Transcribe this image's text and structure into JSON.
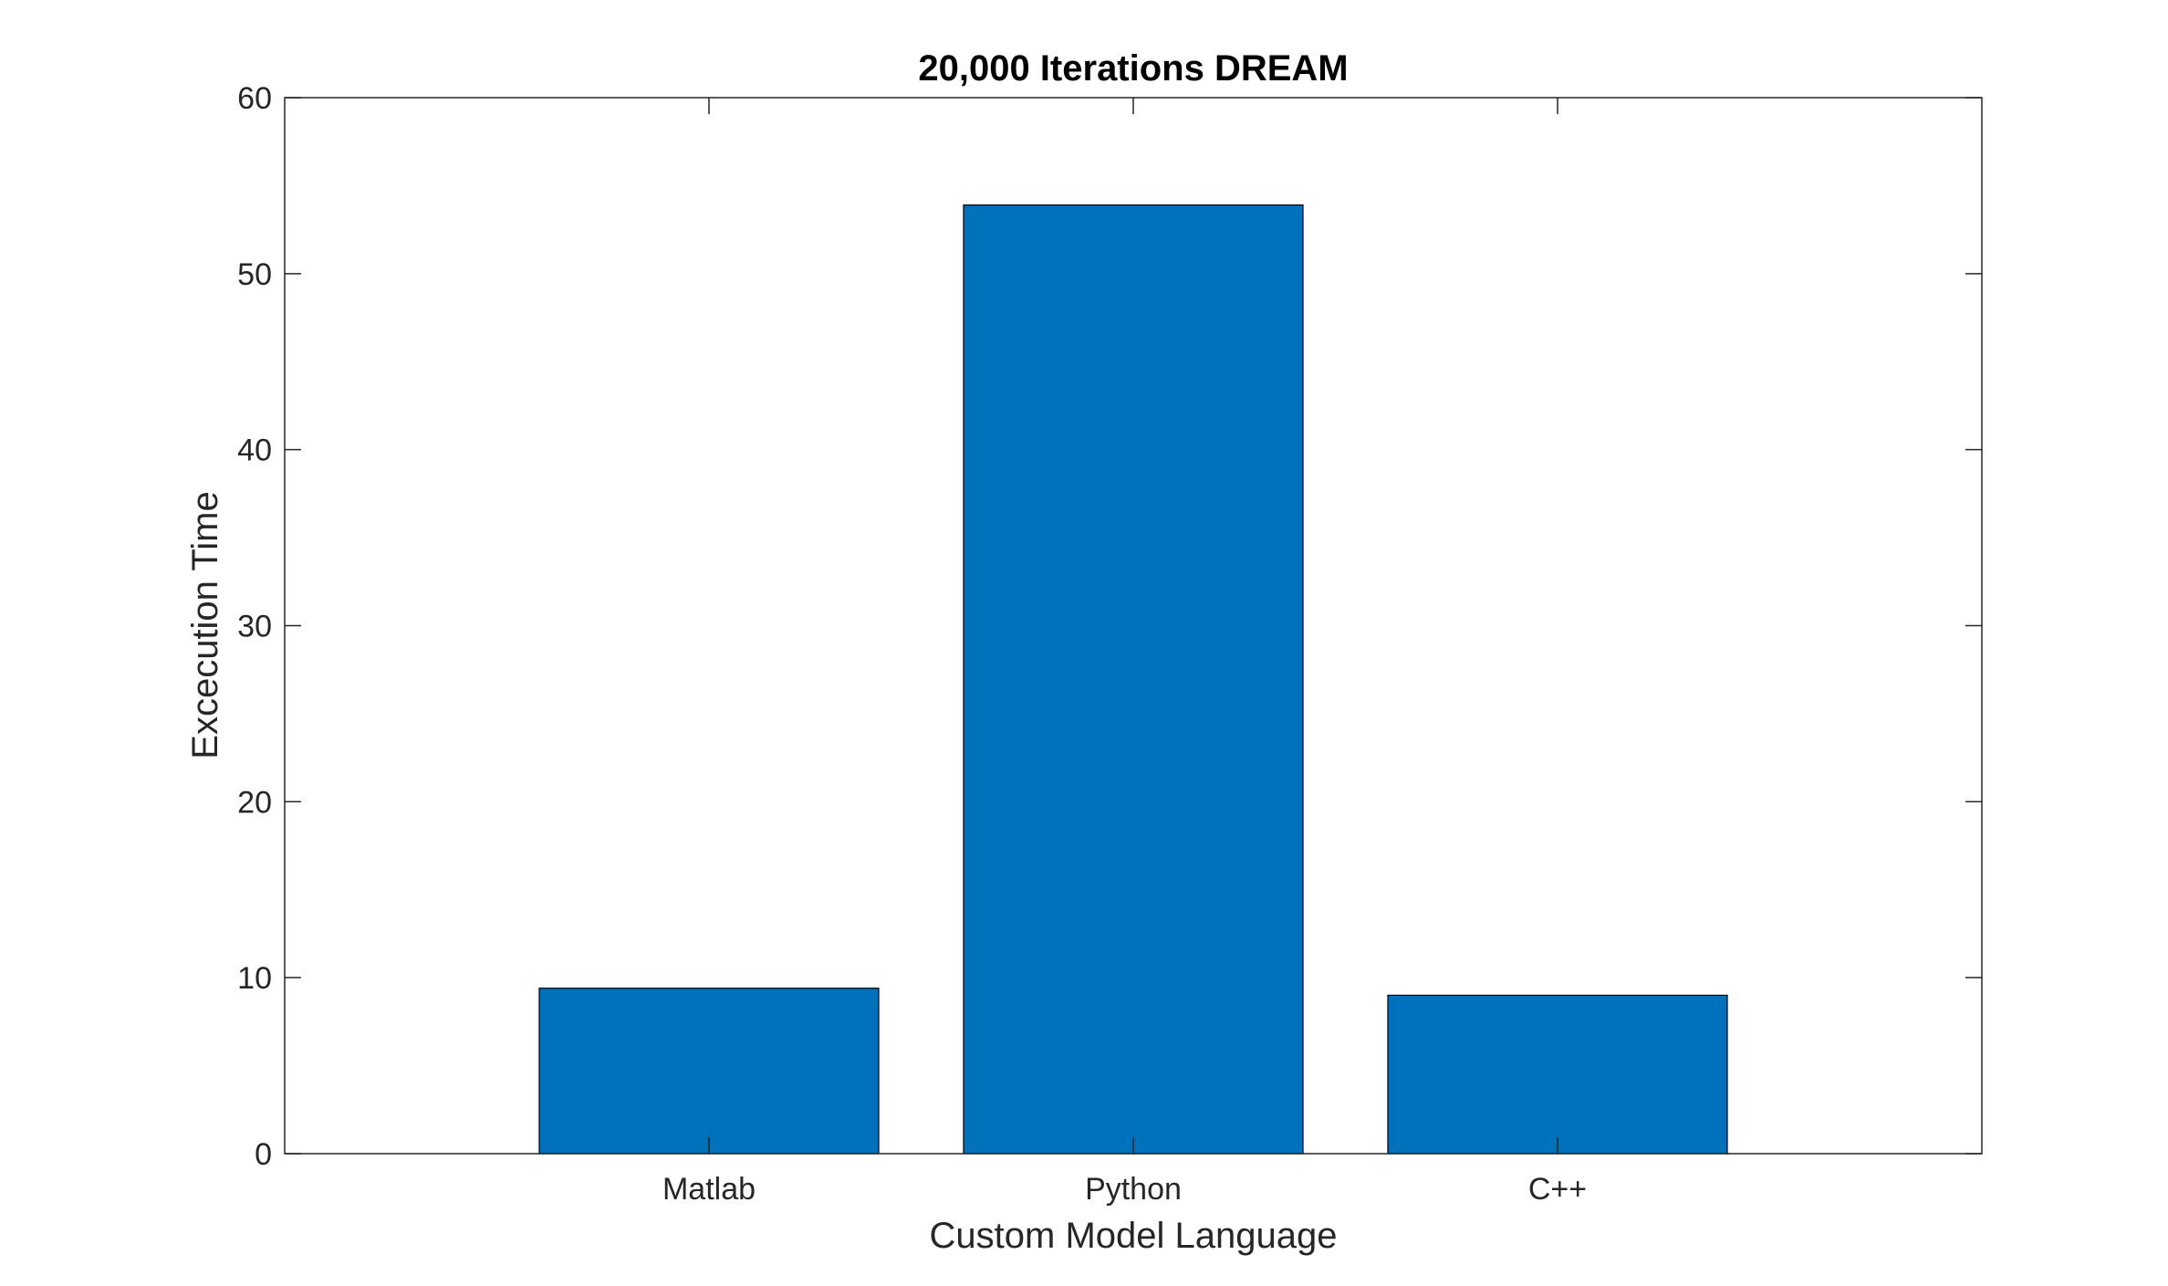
{
  "chart_data": {
    "type": "bar",
    "title": "20,000 Iterations DREAM",
    "xlabel": "Custom Model Language",
    "ylabel": "Excecution Time",
    "categories": [
      "Matlab",
      "Python",
      "C++"
    ],
    "values": [
      9.4,
      53.9,
      9.0
    ],
    "ylim": [
      0,
      60
    ],
    "yticks": [
      0,
      10,
      20,
      30,
      40,
      50,
      60
    ],
    "grid": false,
    "legend": "none",
    "colors": {
      "bar_fill": "#0072BD",
      "bar_edge": "#000000",
      "axis": "#262626"
    }
  }
}
